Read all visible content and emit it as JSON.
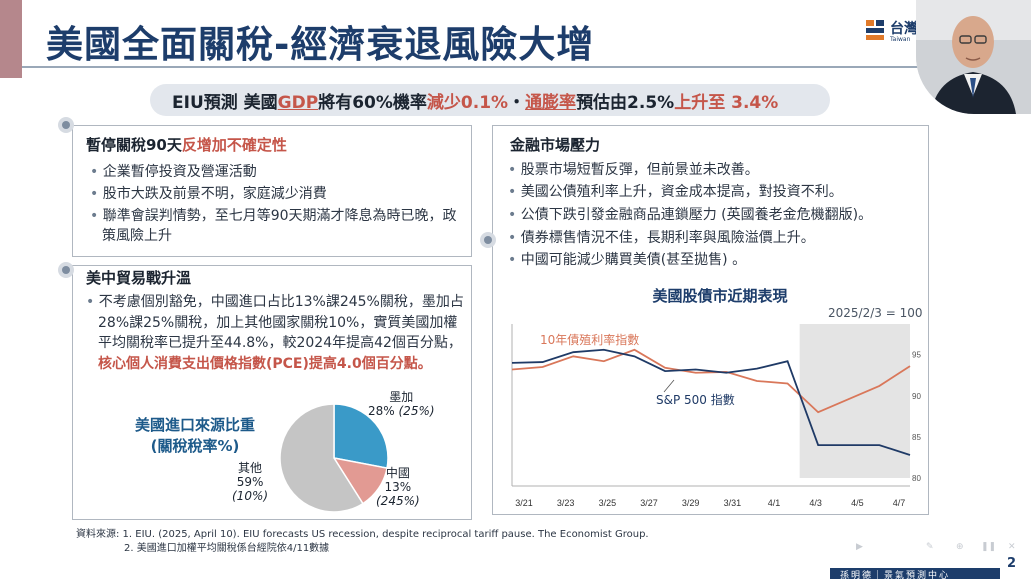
{
  "slide": {
    "title": "美國全面關稅-經濟衰退風險大增",
    "page_number": "2",
    "logo_text": "台灣",
    "logo_sub": "Taiwan",
    "footer": "孫明德｜景氣預測中心"
  },
  "banner": {
    "p1": "EIU預測 美國",
    "p2": "GDP",
    "p3": "將有60%機率",
    "p4": "減少0.1%",
    "p5": "・",
    "p6": "通膨率",
    "p7": "預估由2.5%",
    "p8": "上升至 3.4%"
  },
  "pause_box": {
    "title_a": "暫停關稅90天",
    "title_b": "反增加不確定性",
    "items": [
      "企業暫停投資及營運活動",
      "股市大跌及前景不明，家庭減少消費",
      "聯準會誤判情勢，至七月等90天期滿才降息為時已晚，政策風險上升"
    ]
  },
  "trade_box": {
    "title": "美中貿易戰升溫",
    "text_a": "不考慮個別豁免，中國進口占比13%課245%關稅，墨加占28%課25%關稅，加上其他國家關稅10%，實質美國加權平均關稅率已提升至44.8%，較2024年提高42個百分點，",
    "text_b": "核心個人消費支出價格指數(PCE)提高4.0個百分點。"
  },
  "pie": {
    "title": "美國進口來源比重\n(關稅稅率%)",
    "slices": [
      {
        "name": "墨加",
        "share": "28%",
        "rate": "(25%)",
        "value": 28,
        "color": "#3a9ac8"
      },
      {
        "name": "中國",
        "share": "13%",
        "rate": "(245%)",
        "value": 13,
        "color": "#e29a93"
      },
      {
        "name": "其他",
        "share": "59%",
        "rate": "(10%)",
        "value": 59,
        "color": "#c5c5c5"
      }
    ]
  },
  "market_box": {
    "title": "金融市場壓力",
    "items": [
      "股票市場短暫反彈，但前景並未改善。",
      "美國公債殖利率上升，資金成本提高，對投資不利。",
      "公債下跌引發金融商品連鎖壓力 (英國養老金危機翻版)。",
      "債券標售情況不佳，長期利率與風險溢價上升。",
      "中國可能減少購買美債(甚至拋售) 。"
    ]
  },
  "chart_data": {
    "type": "line",
    "title": "美國股債市近期表現",
    "note": "2025/2/3 = 100",
    "x_ticks": [
      "3/21",
      "3/23",
      "3/25",
      "3/27",
      "3/29",
      "3/31",
      "4/1",
      "4/3",
      "4/5",
      "4/7"
    ],
    "ylim": [
      80,
      98
    ],
    "y_ticks": [
      80,
      85,
      90,
      95
    ],
    "shaded_from": "4/3",
    "series": [
      {
        "name": "10年債殖利率指數",
        "color": "#d9775a",
        "values": [
          93.2,
          93.5,
          94.8,
          94.2,
          95.6,
          93.4,
          92.8,
          92.9,
          91.8,
          91.5,
          88.0,
          89.6,
          91.2,
          93.6
        ]
      },
      {
        "name": "S&P 500 指數",
        "color": "#1f3a66",
        "values": [
          94.0,
          94.1,
          95.3,
          95.6,
          94.8,
          93.0,
          93.2,
          92.8,
          93.3,
          94.2,
          84.0,
          84.0,
          84.0,
          82.8
        ]
      }
    ]
  },
  "source": {
    "line1": "資料來源: 1. EIU. (2025, April 10). EIU forecasts US recession, despite reciprocal tariff pause. The Economist Group.",
    "line2": "2. 美國進口加權平均關稅係台經院依4/11數據"
  }
}
